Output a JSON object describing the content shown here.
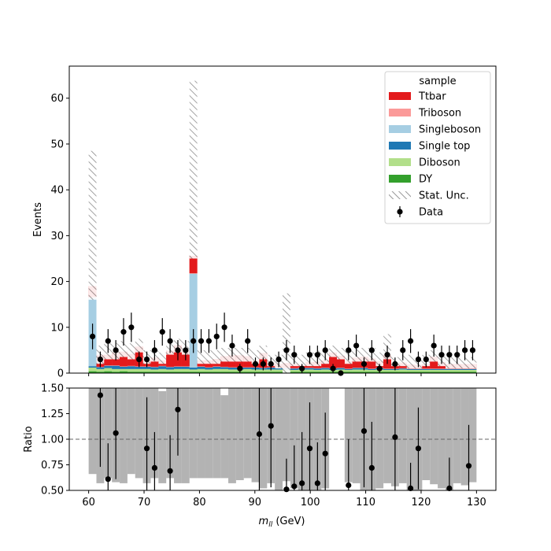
{
  "chart_data": [
    {
      "type": "bar",
      "subtype": "stacked-histogram-with-data-points",
      "ylabel": "Events",
      "xlim": [
        56.5,
        133.5
      ],
      "ylim": [
        0,
        67
      ],
      "yticks": [
        0,
        10,
        20,
        30,
        40,
        50,
        60
      ],
      "grid": false,
      "legend": {
        "title": "sample",
        "placement": "top-right",
        "entries": [
          {
            "label": "Ttbar",
            "kind": "patch",
            "color": "#e31a1c"
          },
          {
            "label": "Triboson",
            "kind": "patch",
            "color": "#fb9a99"
          },
          {
            "label": "Singleboson",
            "kind": "patch",
            "color": "#a6cee3"
          },
          {
            "label": "Single top",
            "kind": "patch",
            "color": "#1f78b4"
          },
          {
            "label": "Diboson",
            "kind": "patch",
            "color": "#b2df8a"
          },
          {
            "label": "DY",
            "kind": "patch",
            "color": "#33a02c"
          },
          {
            "label": "Stat. Unc.",
            "kind": "hatch",
            "color": "#888888"
          },
          {
            "label": "Data",
            "kind": "marker",
            "color": "#000000"
          }
        ]
      },
      "bin_edges_start": 60,
      "bin_width": 1.4,
      "series": [
        {
          "name": "DY",
          "color": "#33a02c",
          "values": [
            0.4,
            0.3,
            0.4,
            0.3,
            0.4,
            0.3,
            0.3,
            0.3,
            0.3,
            0.3,
            0.3,
            0.3,
            0.3,
            0.3,
            0.3,
            0.3,
            0.3,
            0.3,
            0.3,
            0.3,
            0.3,
            0.3,
            0.3,
            0.3,
            0.3,
            0.3,
            0.3,
            0.3,
            0.3,
            0.3,
            0.3,
            0.3,
            0.3,
            0.3,
            0.3,
            0.3,
            0.3,
            0.3,
            0.3,
            0.3,
            0.3,
            0.3,
            0.3,
            0.3,
            0.3,
            0.3,
            0.3,
            0.3,
            0.3,
            0.3
          ]
        },
        {
          "name": "Diboson",
          "color": "#b2df8a",
          "values": [
            0.8,
            0.6,
            0.7,
            0.6,
            0.5,
            0.6,
            0.6,
            0.6,
            0.5,
            0.6,
            0.5,
            0.6,
            0.6,
            0.5,
            0.6,
            0.5,
            0.6,
            0.6,
            0.5,
            0.5,
            0.6,
            0.5,
            0.5,
            0.5,
            0.5,
            0.5,
            0.4,
            0.5,
            0.5,
            0.4,
            0.5,
            0.4,
            0.5,
            0.4,
            0.5,
            0.5,
            0.4,
            0.5,
            0.4,
            0.4,
            0.5,
            0.4,
            0.4,
            0.4,
            0.4,
            0.4,
            0.4,
            0.4,
            0.4,
            0.4
          ]
        },
        {
          "name": "Single top",
          "color": "#1f78b4",
          "values": [
            0.3,
            0.4,
            0.5,
            0.7,
            0.5,
            0.6,
            0.5,
            0.5,
            0.5,
            0.6,
            0.5,
            0.5,
            0.5,
            0.4,
            0.5,
            0.4,
            0.5,
            0.4,
            0.4,
            0.4,
            0.3,
            0.4,
            0.3,
            0.4,
            0.3,
            0.3,
            0.3,
            0.3,
            0.3,
            0.3,
            0.3,
            0.3,
            0.3,
            0.2,
            0.3,
            0.3,
            0.2,
            0.3,
            0.2,
            0.2,
            0.2,
            0.2,
            0.2,
            0.2,
            0.2,
            0.2,
            0.2,
            0.2,
            0.2,
            0.2
          ]
        },
        {
          "name": "Singleboson",
          "color": "#a6cee3",
          "values": [
            15.0,
            0,
            0,
            0,
            0,
            0,
            0,
            0,
            0,
            0,
            0,
            0,
            0,
            20.5,
            0,
            0,
            0,
            0,
            0,
            0,
            0,
            0,
            0,
            0,
            0,
            0,
            0,
            0,
            0,
            0,
            0,
            0,
            0,
            0,
            0,
            0,
            0,
            0,
            0,
            0,
            0,
            0,
            0,
            0,
            0,
            0,
            0,
            0,
            0,
            0
          ]
        },
        {
          "name": "Triboson",
          "color": "#fb9a99",
          "values": [
            0.1,
            0.1,
            0.1,
            0.1,
            0.1,
            0.1,
            0.1,
            0.1,
            0.1,
            0.1,
            0.1,
            0.1,
            0.1,
            0.1,
            0.1,
            0.1,
            0.1,
            0.1,
            0.1,
            0.1,
            0.1,
            0.1,
            0.1,
            0.1,
            0.1,
            0.1,
            0.1,
            0.1,
            0.1,
            0.1,
            0.1,
            0.1,
            0.1,
            0.1,
            0.1,
            0.1,
            0.1,
            0.1,
            0.1,
            0.1,
            0.1,
            0.1,
            0.1,
            0.1,
            0.1,
            0.1,
            0.1,
            0.1,
            0.1,
            0.1
          ]
        },
        {
          "name": "Ttbar",
          "color": "#e31a1c",
          "values": [
            2.4,
            2.6,
            2.3,
            2.8,
            3.2,
            2.6,
            4.3,
            1.5,
            2.0,
            1.2,
            3.5,
            4.6,
            3.5,
            3.8,
            1.3,
            1.5,
            1.6,
            2.3,
            2.6,
            2.6,
            2.4,
            1.4,
            3.2,
            1.0,
            0.8,
            1.0,
            0.9,
            0.5,
            1.2,
            1.4,
            1.6,
            3.4,
            2.6,
            1.6,
            2.2,
            2.4,
            2.2,
            1.4,
            3.0,
            1.0,
            1.2,
            0.9,
            0.8,
            1.0,
            2.6,
            1.4,
            1.0,
            1.0,
            1.0,
            1.0
          ]
        }
      ],
      "stat_unc_band": {
        "style": "hatch",
        "down": [
          16.0,
          2.0,
          3.0,
          3.0,
          3.5,
          3.0,
          4.5,
          2.0,
          2.5,
          2.0,
          4.0,
          4.5,
          4.0,
          25.0,
          2.0,
          2.0,
          2.0,
          2.5,
          2.5,
          2.5,
          2.5,
          2.0,
          3.0,
          1.5,
          1.0,
          0.0,
          1.5,
          1.5,
          1.5,
          1.5,
          2.0,
          3.5,
          3.0,
          2.0,
          2.5,
          2.5,
          2.5,
          1.5,
          3.0,
          1.5,
          1.5,
          1.0,
          1.0,
          1.5,
          2.5,
          1.5,
          1.0,
          1.0,
          1.0,
          1.0
        ],
        "up": [
          48.5,
          6.0,
          6.5,
          6.5,
          7.0,
          6.5,
          7.5,
          5.0,
          5.0,
          4.5,
          7.0,
          7.5,
          7.0,
          63.8,
          5.0,
          5.0,
          5.0,
          5.5,
          5.5,
          5.5,
          5.5,
          5.0,
          6.0,
          4.0,
          4.0,
          17.4,
          4.5,
          4.0,
          4.5,
          5.0,
          5.0,
          6.0,
          5.5,
          5.0,
          5.5,
          5.5,
          5.5,
          4.5,
          8.5,
          3.5,
          4.0,
          4.0,
          3.5,
          4.0,
          5.0,
          4.0,
          3.5,
          3.5,
          3.5,
          3.5
        ]
      },
      "data_points": {
        "x": [
          60.7,
          62.1,
          63.5,
          64.9,
          66.3,
          67.7,
          69.1,
          70.5,
          71.9,
          73.3,
          74.7,
          76.1,
          77.5,
          78.9,
          80.3,
          81.7,
          83.1,
          84.5,
          85.9,
          87.3,
          88.7,
          90.1,
          91.5,
          92.9,
          94.3,
          95.7,
          97.1,
          98.5,
          99.9,
          101.3,
          102.7,
          104.1,
          105.5,
          106.9,
          108.3,
          109.7,
          111.1,
          112.5,
          113.9,
          115.3,
          116.7,
          118.1,
          119.5,
          120.9,
          122.3,
          123.7,
          125.1,
          126.5,
          127.9,
          129.3
        ],
        "y": [
          8,
          3,
          7,
          5,
          9,
          10,
          3,
          3,
          5,
          9,
          7,
          5,
          5,
          7,
          7,
          7,
          8,
          10,
          6,
          1,
          7,
          2,
          2,
          2,
          3,
          5,
          4,
          1,
          4,
          4,
          5,
          1,
          0,
          5,
          6,
          2,
          5,
          1,
          4,
          2,
          5,
          7,
          3,
          3,
          6,
          4,
          4,
          4,
          5,
          5
        ],
        "yerr": [
          2.8,
          1.7,
          2.6,
          2.2,
          3.0,
          3.2,
          1.7,
          1.7,
          2.2,
          3.0,
          2.6,
          2.2,
          2.2,
          2.6,
          2.6,
          2.6,
          2.8,
          3.2,
          2.4,
          1.0,
          2.6,
          1.4,
          1.4,
          1.4,
          1.7,
          2.2,
          2.0,
          1.0,
          2.0,
          2.0,
          2.2,
          1.0,
          0.5,
          2.2,
          2.4,
          1.4,
          2.2,
          1.0,
          2.0,
          1.4,
          2.2,
          2.6,
          1.7,
          1.7,
          2.4,
          2.0,
          2.0,
          2.0,
          2.2,
          2.2
        ]
      }
    },
    {
      "type": "scatter",
      "subtype": "ratio-panel",
      "xlabel": "m_{ll} (GeV)",
      "ylabel": "Ratio",
      "xlim": [
        56.5,
        133.5
      ],
      "ylim": [
        0.5,
        1.5
      ],
      "xticks": [
        60,
        70,
        80,
        90,
        100,
        110,
        120,
        130
      ],
      "yticks": [
        0.5,
        0.75,
        1.0,
        1.25,
        1.5
      ],
      "ytick_labels": [
        "0.50",
        "0.75",
        "1.00",
        "1.25",
        "1.50"
      ],
      "reference_line": 1.0,
      "band": {
        "color": "#b3b3b3",
        "down": [
          0.66,
          0.57,
          0.62,
          0.58,
          0.57,
          0.66,
          0.62,
          0.57,
          0.62,
          0.57,
          0.62,
          0.57,
          0.57,
          0.62,
          0.62,
          0.62,
          0.62,
          0.62,
          0.57,
          0.6,
          0.62,
          0.58,
          0.52,
          0.57,
          0.5,
          0.59,
          0.52,
          0.5,
          0.5,
          0.5,
          0.52,
          null,
          null,
          0.58,
          0.57,
          0.5,
          0.5,
          0.52,
          0.57,
          0.54,
          0.57,
          0.5,
          0.5,
          0.6,
          0.56,
          0.52,
          0.5,
          0.57,
          0.55,
          0.58
        ],
        "up": [
          1.5,
          1.5,
          1.5,
          1.5,
          1.5,
          1.5,
          1.5,
          1.5,
          1.5,
          1.47,
          1.5,
          1.5,
          1.5,
          1.5,
          1.5,
          1.5,
          1.5,
          1.43,
          1.5,
          1.5,
          1.5,
          1.5,
          1.5,
          1.5,
          1.5,
          1.5,
          1.5,
          1.5,
          1.5,
          1.5,
          1.5,
          null,
          null,
          1.5,
          1.5,
          1.5,
          1.5,
          1.5,
          1.5,
          1.5,
          1.5,
          1.5,
          1.5,
          1.5,
          1.5,
          1.5,
          1.5,
          1.5,
          1.5,
          1.5
        ]
      },
      "points": {
        "x": [
          62.1,
          63.5,
          64.9,
          70.5,
          71.9,
          74.7,
          76.1,
          90.8,
          92.9,
          95.7,
          97.1,
          98.5,
          99.9,
          101.3,
          102.7,
          106.9,
          109.7,
          111.1,
          115.3,
          118.1,
          119.5,
          125.1,
          128.6
        ],
        "y": [
          1.43,
          0.61,
          1.06,
          0.91,
          0.72,
          0.69,
          1.29,
          1.05,
          1.13,
          0.51,
          0.54,
          0.57,
          0.91,
          0.57,
          0.86,
          0.55,
          1.08,
          0.72,
          1.02,
          0.52,
          0.91,
          0.52,
          0.74
        ],
        "yerr": [
          0.7,
          0.35,
          0.45,
          0.5,
          0.35,
          0.35,
          0.45,
          0.6,
          0.6,
          0.3,
          0.4,
          0.5,
          0.45,
          0.4,
          0.4,
          0.45,
          0.55,
          0.45,
          0.55,
          0.25,
          0.4,
          0.3,
          0.4
        ]
      }
    }
  ]
}
